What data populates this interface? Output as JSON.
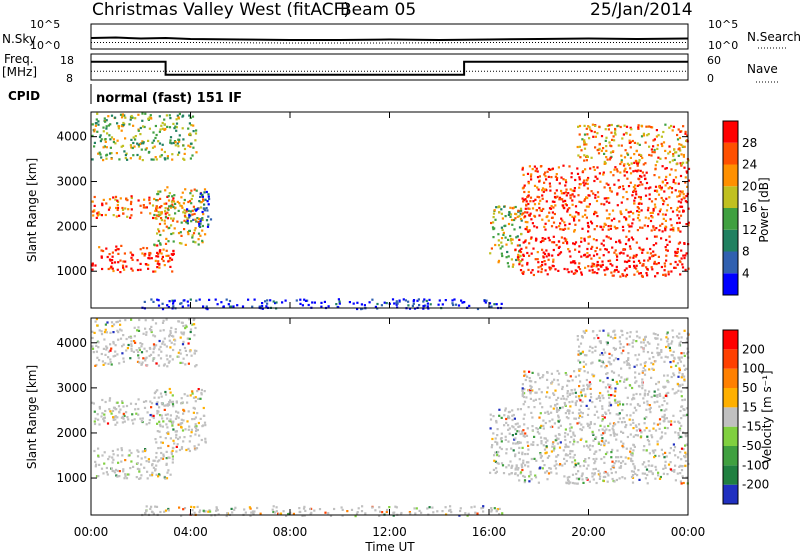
{
  "header": {
    "title": "Christmas Valley West (fitACF)",
    "beam": "Beam 05",
    "date": "25/Jan/2014"
  },
  "nsky_panel": {
    "left_label": "N.Sky",
    "right_label": "N.Search",
    "left_ticks": [
      "10^5",
      "10^0"
    ],
    "right_ticks": [
      "10^5",
      "10^0"
    ]
  },
  "freq_panel": {
    "left_label_1": "Freq.",
    "left_label_2": "[MHz]",
    "right_label": "Nave",
    "left_ticks": [
      "18",
      "8"
    ],
    "right_ticks": [
      "60",
      "0"
    ]
  },
  "cpid": {
    "label": "CPID",
    "value": "normal (fast) 151 IF"
  },
  "chart_data": [
    {
      "type": "line",
      "name": "sky-noise",
      "series": [
        {
          "name": "N.Sky",
          "x": [
            0,
            1,
            2,
            3,
            4,
            6,
            8,
            10,
            12,
            14,
            16,
            18,
            20,
            22,
            24
          ],
          "y": [
            2.2,
            2.3,
            2.1,
            2.2,
            2.0,
            1.9,
            1.8,
            1.8,
            1.9,
            1.8,
            1.9,
            2.0,
            2.1,
            2.0,
            2.1
          ]
        },
        {
          "name": "N.Search",
          "x": [
            0,
            4,
            8,
            12,
            16,
            20,
            24
          ],
          "y": [
            1.3,
            1.3,
            1.2,
            1.2,
            1.3,
            1.3,
            1.3
          ]
        }
      ],
      "xlim": [
        0,
        24
      ],
      "ylim_left": [
        0,
        5
      ],
      "ylim_right": [
        0,
        5
      ]
    },
    {
      "type": "line",
      "name": "frequency-nave",
      "series": [
        {
          "name": "Freq.",
          "x": [
            0,
            3,
            3,
            15,
            15,
            24
          ],
          "y": [
            15,
            15,
            10,
            10,
            15,
            15
          ]
        },
        {
          "name": "Nave",
          "x": [
            0,
            24
          ],
          "y": [
            20,
            20
          ]
        }
      ],
      "xlim": [
        0,
        24
      ],
      "ylim_left": [
        8,
        18
      ],
      "ylim_right": [
        0,
        60
      ]
    },
    {
      "type": "heatmap",
      "name": "power",
      "ylabel": "Slant Range [km]",
      "y_ticks": [
        1000,
        2000,
        3000,
        4000
      ],
      "ylim": [
        180,
        4550
      ],
      "xlim": [
        0,
        24
      ],
      "colorbar": {
        "label": "Power [dB]",
        "ticks": [
          "28",
          "24",
          "20",
          "16",
          "12",
          "8",
          "4"
        ],
        "colors": [
          "#0000ff",
          "#3060b0",
          "#208060",
          "#40a040",
          "#c0c020",
          "#ff9000",
          "#ff5000",
          "#ff0000"
        ]
      },
      "regions": [
        {
          "t0": 0.0,
          "t1": 3.3,
          "r0": 1000,
          "r1": 1600,
          "level": 0.9
        },
        {
          "t0": 0.0,
          "t1": 3.3,
          "r0": 2200,
          "r1": 2700,
          "level": 0.8
        },
        {
          "t0": 2.5,
          "t1": 4.6,
          "r0": 1600,
          "r1": 2900,
          "level": 0.6
        },
        {
          "t0": 0.0,
          "t1": 4.2,
          "r0": 3500,
          "r1": 4550,
          "level": 0.5
        },
        {
          "t0": 3.8,
          "t1": 4.8,
          "r0": 2000,
          "r1": 2800,
          "level": 0.2
        },
        {
          "t0": 2.0,
          "t1": 16.5,
          "r0": 180,
          "r1": 400,
          "level": 0.05
        },
        {
          "t0": 16.0,
          "t1": 17.3,
          "r0": 1100,
          "r1": 2500,
          "level": 0.55
        },
        {
          "t0": 17.0,
          "t1": 24.0,
          "r0": 900,
          "r1": 1800,
          "level": 0.95
        },
        {
          "t0": 17.3,
          "t1": 24.0,
          "r0": 1900,
          "r1": 3400,
          "level": 0.85
        },
        {
          "t0": 19.5,
          "t1": 24.0,
          "r0": 3400,
          "r1": 4300,
          "level": 0.7
        }
      ]
    },
    {
      "type": "heatmap",
      "name": "velocity",
      "ylabel": "Slant Range [km]",
      "xlabel": "Time UT",
      "y_ticks": [
        1000,
        2000,
        3000,
        4000
      ],
      "ylim": [
        180,
        4550
      ],
      "xlim": [
        0,
        24
      ],
      "x_ticks": [
        "00:00",
        "04:00",
        "08:00",
        "12:00",
        "16:00",
        "20:00",
        "00:00"
      ],
      "colorbar": {
        "label": "Velocity [m s⁻¹]",
        "ticks": [
          "200",
          "100",
          "50",
          "15",
          "-15",
          "-50",
          "-100",
          "-200"
        ],
        "colors": [
          "#2030c0",
          "#208040",
          "#40a040",
          "#80d040",
          "#c0c0c0",
          "#ffb000",
          "#ff8000",
          "#ff4000",
          "#ff0000"
        ]
      },
      "regions": [
        {
          "t0": 0.0,
          "t1": 3.3,
          "r0": 1000,
          "r1": 1700,
          "level": 0.5
        },
        {
          "t0": 0.0,
          "t1": 3.3,
          "r0": 2200,
          "r1": 2800,
          "level": 0.5
        },
        {
          "t0": 2.5,
          "t1": 4.6,
          "r0": 1600,
          "r1": 3000,
          "level": 0.55
        },
        {
          "t0": 0.0,
          "t1": 4.2,
          "r0": 3500,
          "r1": 4550,
          "level": 0.45
        },
        {
          "t0": 2.0,
          "t1": 16.5,
          "r0": 180,
          "r1": 400,
          "level": 0.62
        },
        {
          "t0": 16.0,
          "t1": 17.3,
          "r0": 1100,
          "r1": 2600,
          "level": 0.3
        },
        {
          "t0": 17.0,
          "t1": 24.0,
          "r0": 900,
          "r1": 1900,
          "level": 0.5
        },
        {
          "t0": 17.3,
          "t1": 24.0,
          "r0": 1900,
          "r1": 3400,
          "level": 0.5
        },
        {
          "t0": 19.5,
          "t1": 24.0,
          "r0": 3400,
          "r1": 4300,
          "level": 0.5
        }
      ]
    }
  ]
}
